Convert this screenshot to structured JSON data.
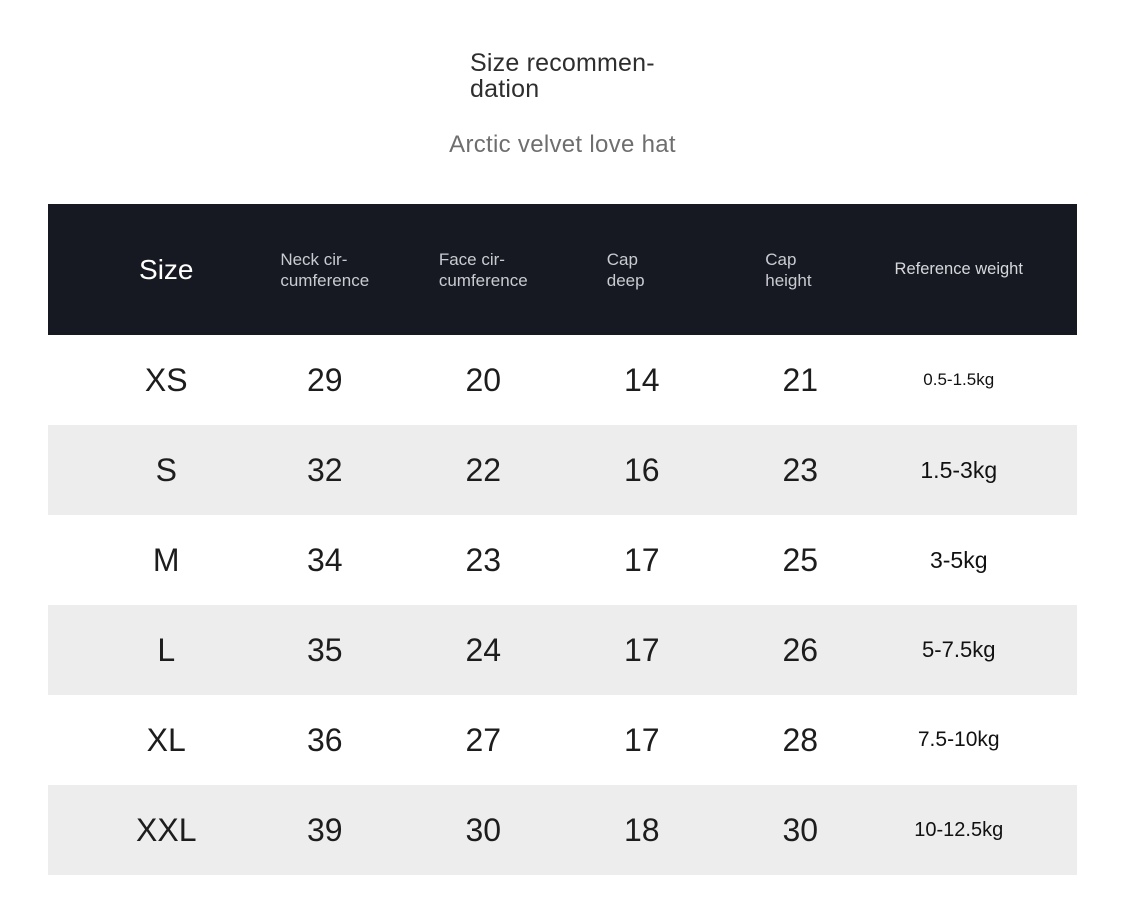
{
  "page": {
    "title": "Size recommen-\ndation",
    "subtitle": "Arctic velvet love hat"
  },
  "colors": {
    "table_header_bg": "#171922",
    "row_alt_bg": "#ededed",
    "header_text": "#c9cbd1",
    "header_size_text": "#ffffff",
    "body_text": "#1d1d1d",
    "subtitle_text": "#6e6e6e"
  },
  "table": {
    "columns": [
      {
        "id": "size",
        "label": "Size"
      },
      {
        "id": "neck",
        "label": "Neck cir-\ncumference"
      },
      {
        "id": "face",
        "label": "Face cir-\ncumference"
      },
      {
        "id": "cap_deep",
        "label": "Cap\ndeep"
      },
      {
        "id": "cap_height",
        "label": "Cap\nheight"
      },
      {
        "id": "weight",
        "label": "Reference weight"
      }
    ],
    "rows": [
      {
        "size": "XS",
        "neck": "29",
        "face": "20",
        "cap_deep": "14",
        "cap_height": "21",
        "weight": "0.5-1.5kg"
      },
      {
        "size": "S",
        "neck": "32",
        "face": "22",
        "cap_deep": "16",
        "cap_height": "23",
        "weight": "1.5-3kg"
      },
      {
        "size": "M",
        "neck": "34",
        "face": "23",
        "cap_deep": "17",
        "cap_height": "25",
        "weight": "3-5kg"
      },
      {
        "size": "L",
        "neck": "35",
        "face": "24",
        "cap_deep": "17",
        "cap_height": "26",
        "weight": "5-7.5kg"
      },
      {
        "size": "XL",
        "neck": "36",
        "face": "27",
        "cap_deep": "17",
        "cap_height": "28",
        "weight": "7.5-10kg"
      },
      {
        "size": "XXL",
        "neck": "39",
        "face": "30",
        "cap_deep": "18",
        "cap_height": "30",
        "weight": "10-12.5kg"
      }
    ]
  }
}
